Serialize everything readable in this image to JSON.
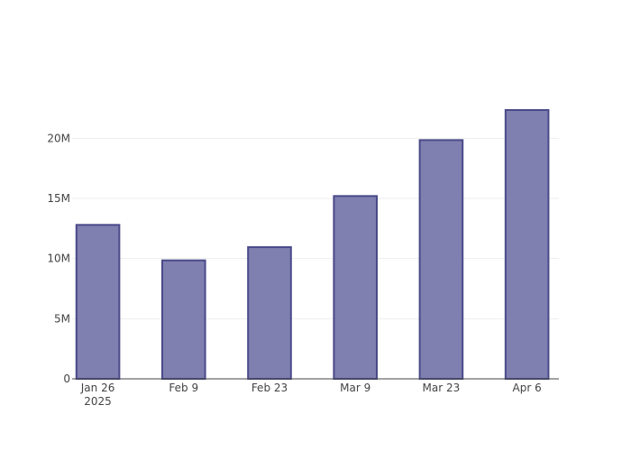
{
  "chart_data": {
    "type": "bar",
    "title": "",
    "xlabel": "",
    "ylabel": "",
    "categories": [
      "Jan 26",
      "Feb 9",
      "Feb 23",
      "Mar 9",
      "Mar 23",
      "Apr 6"
    ],
    "x_year_label": "2025",
    "x": [
      "2025-01-26",
      "2025-02-09",
      "2025-02-23",
      "2025-03-09",
      "2025-03-23",
      "2025-04-06"
    ],
    "values": [
      12800000,
      9850000,
      10950000,
      15200000,
      19850000,
      22350000
    ],
    "ylim": [
      0,
      24000000
    ],
    "yticks": [
      0,
      5000000,
      10000000,
      15000000,
      20000000
    ],
    "ytick_labels": [
      "0",
      "5M",
      "10M",
      "15M",
      "20M"
    ],
    "grid": true,
    "legend": "none",
    "colors": {
      "bar_fill": "#7f7fb0",
      "bar_stroke": "#4a4a8a",
      "grid": "#eeeeee",
      "axis": "#444444",
      "text": "#444444"
    }
  }
}
